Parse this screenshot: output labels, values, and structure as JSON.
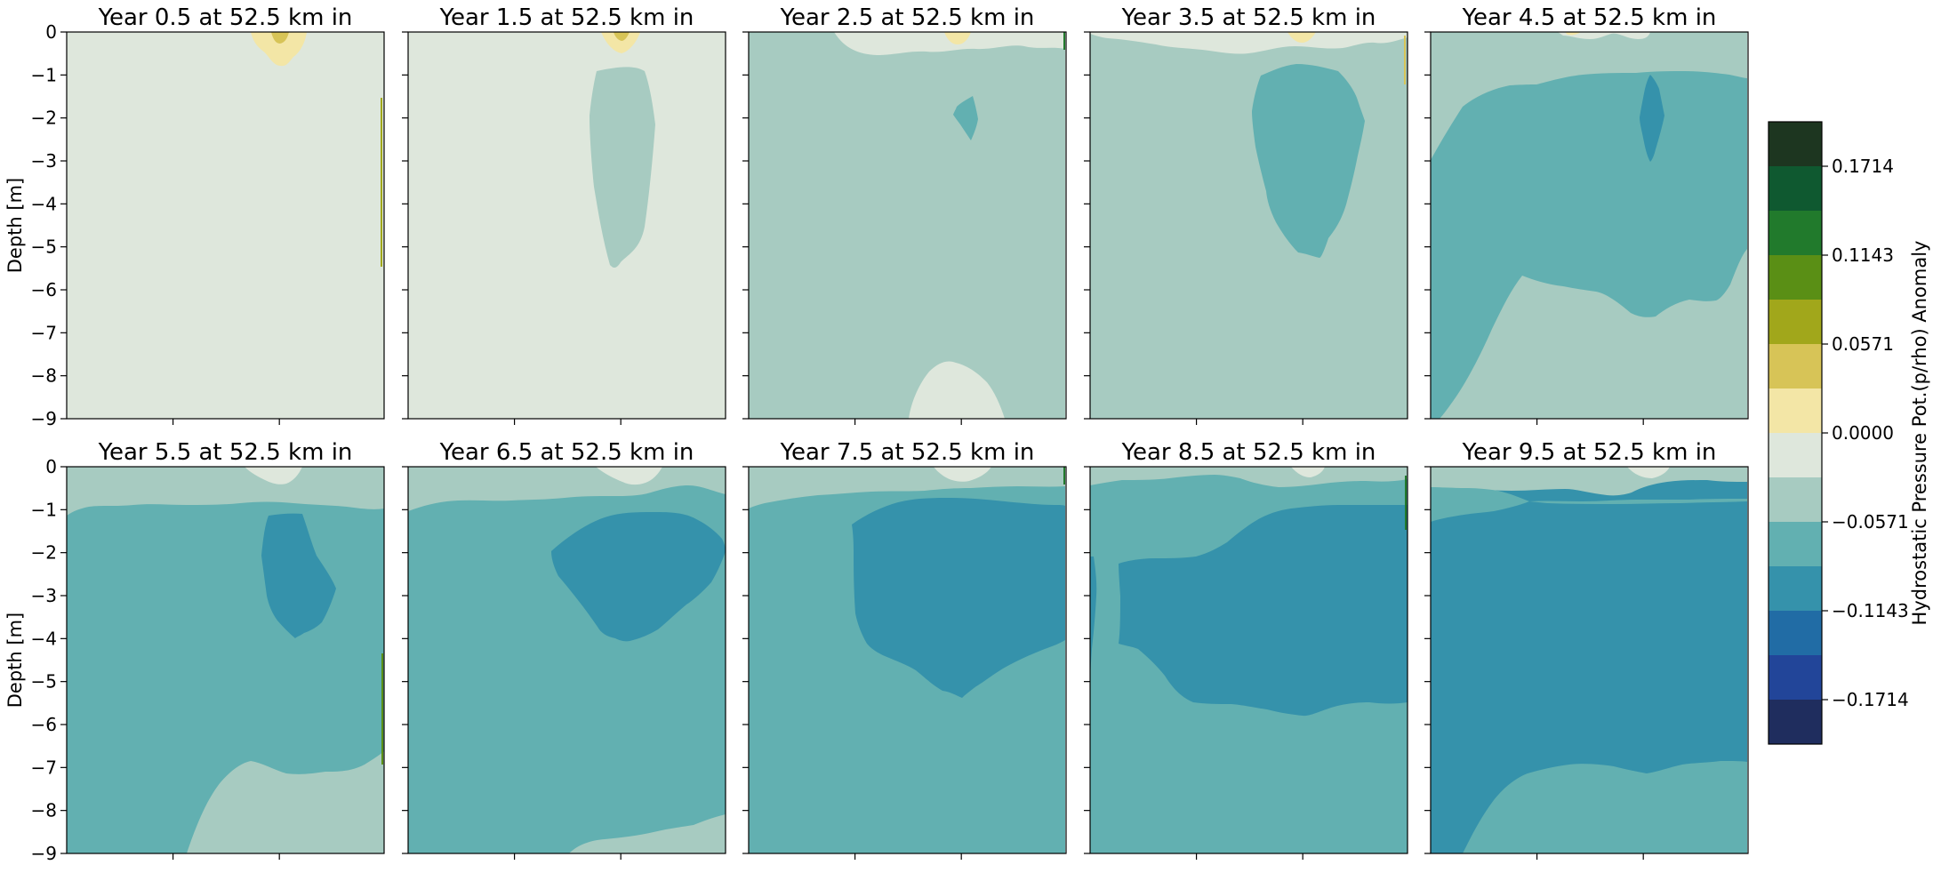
{
  "chart_data": {
    "type": "heatmap",
    "layout": "2x5 small multiples with shared colorbar",
    "panels": [
      {
        "title": "Year 0.5 at 52.5 km in",
        "year": 0.5
      },
      {
        "title": "Year 1.5 at 52.5 km in",
        "year": 1.5
      },
      {
        "title": "Year 2.5 at 52.5 km in",
        "year": 2.5
      },
      {
        "title": "Year 3.5 at 52.5 km in",
        "year": 3.5
      },
      {
        "title": "Year 4.5 at 52.5 km in",
        "year": 4.5
      },
      {
        "title": "Year 5.5 at 52.5 km in",
        "year": 5.5
      },
      {
        "title": "Year 6.5 at 52.5 km in",
        "year": 6.5
      },
      {
        "title": "Year 7.5 at 52.5 km in",
        "year": 7.5
      },
      {
        "title": "Year 8.5 at 52.5 km in",
        "year": 8.5
      },
      {
        "title": "Year 9.5 at 52.5 km in",
        "year": 9.5
      }
    ],
    "ylabel": "Depth [m]",
    "ylim": [
      -9,
      0
    ],
    "yticks": [
      "0",
      "−1",
      "−2",
      "−3",
      "−4",
      "−5",
      "−6",
      "−7",
      "−8",
      "−9"
    ],
    "colorbar": {
      "label": "Hydrostatic Pressure Pot.(p/rho) Anomaly",
      "ticks": [
        "0.1714",
        "0.1143",
        "0.0571",
        "0.0000",
        "−0.0571",
        "−0.1143",
        "−0.1714"
      ],
      "levels_top_to_bottom": [
        "#1d3620",
        "#0f5930",
        "#217a2c",
        "#5a8f15",
        "#a1a71b",
        "#d7c457",
        "#f3e6a6",
        "#dee7dc",
        "#a7cbc1",
        "#62b0b1",
        "#3592ab",
        "#216ca5",
        "#224599",
        "#1f2d5e"
      ]
    },
    "colors": {
      "c_pos3": "#d7c457",
      "c_pos2": "#f3e6a6",
      "c_pos1": "#dee7dc",
      "c_neg1": "#a7cbc1",
      "c_neg2": "#62b0b1",
      "c_neg3": "#3592ab"
    }
  }
}
